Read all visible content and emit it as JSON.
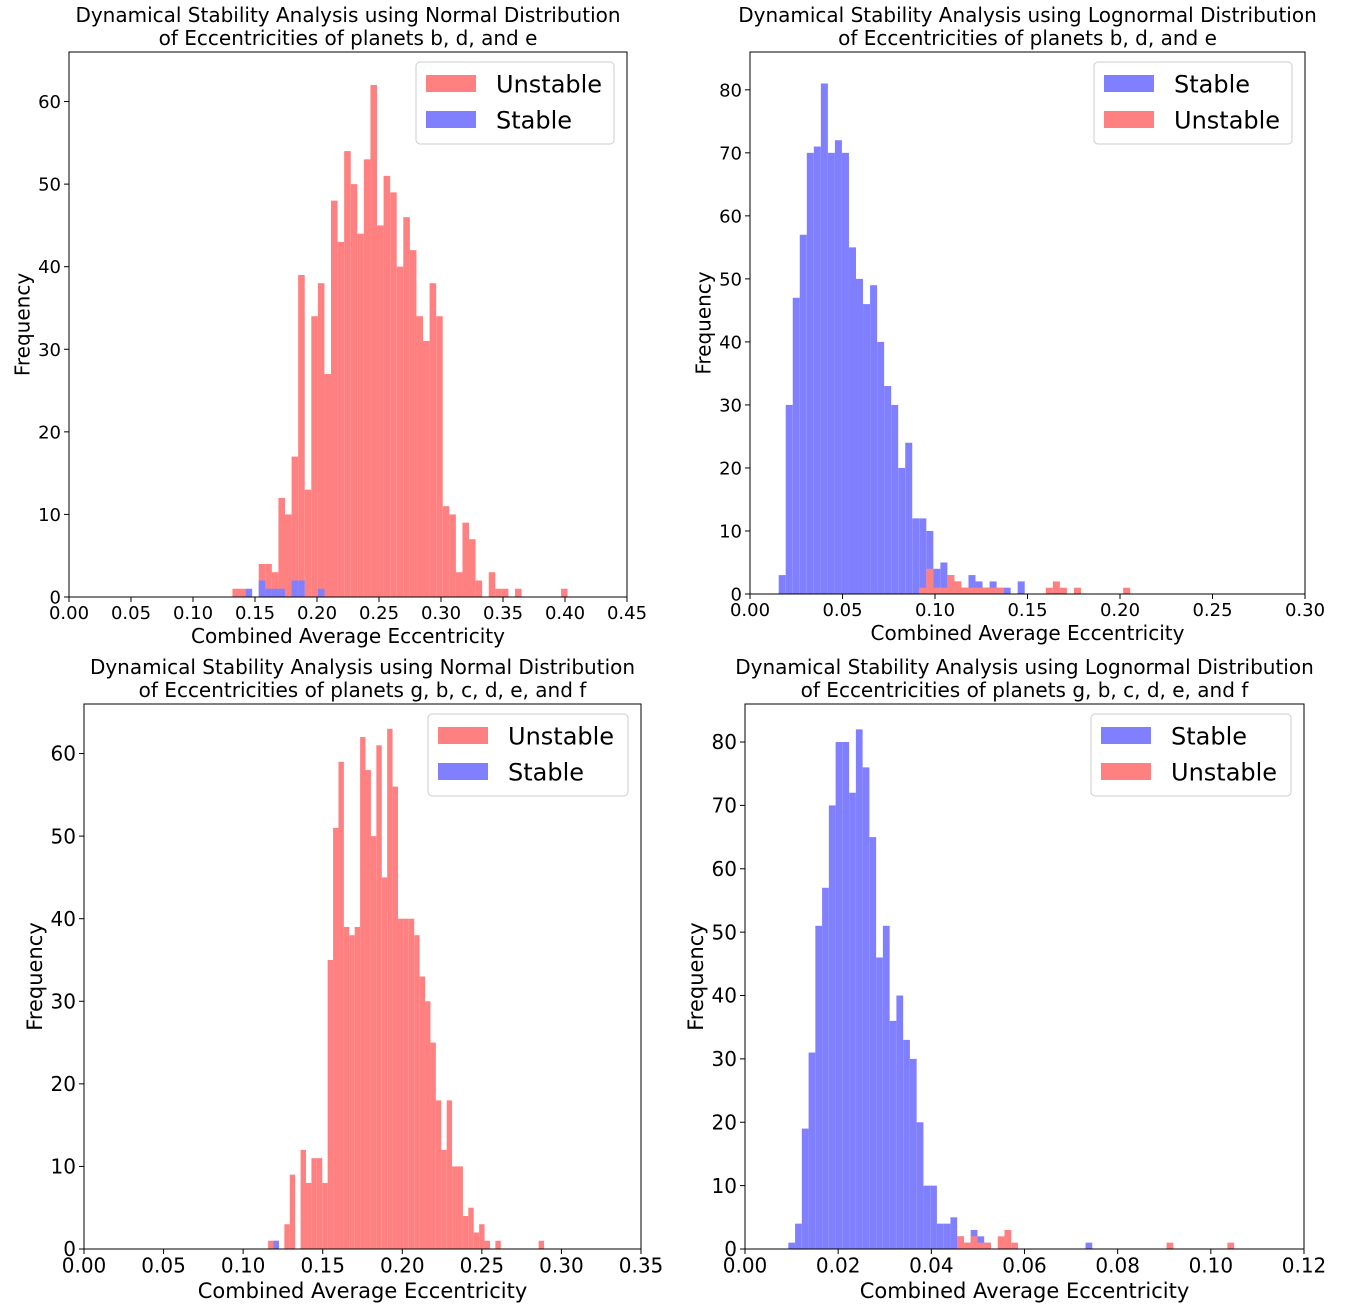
{
  "colors": {
    "stable": "#8080ff",
    "unstable": "#ff8080",
    "axis": "#000000"
  },
  "chart_data": [
    {
      "type": "bar",
      "title_lines": [
        "Dynamical Stability Analysis using Normal Distribution",
        "of Eccentricities of planets b, d, and e"
      ],
      "xlabel": "Combined Average Eccentricity",
      "ylabel": "Frequency",
      "xlim": [
        0,
        0.45
      ],
      "ylim": [
        0,
        66
      ],
      "xticks": [
        0,
        0.05,
        0.1,
        0.15,
        0.2,
        0.25,
        0.3,
        0.35,
        0.4,
        0.45
      ],
      "xtick_labels": [
        "0.00",
        "0.05",
        "0.10",
        "0.15",
        "0.20",
        "0.25",
        "0.30",
        "0.35",
        "0.40",
        "0.45"
      ],
      "yticks": [
        0,
        10,
        20,
        30,
        40,
        50,
        60
      ],
      "ytick_labels": [
        "0",
        "10",
        "20",
        "30",
        "40",
        "50",
        "60"
      ],
      "legend": {
        "position": "top-right",
        "entries": [
          {
            "label": "Unstable",
            "color_key": "unstable"
          },
          {
            "label": "Stable",
            "color_key": "stable"
          }
        ]
      },
      "series": [
        {
          "name": "Unstable",
          "color_key": "unstable",
          "bin_start": 0.1318,
          "bin_width": 0.0053,
          "values": [
            1,
            1,
            0,
            0,
            4,
            4,
            3,
            12,
            10,
            17,
            39,
            13,
            34,
            38,
            27,
            48,
            43,
            54,
            50,
            44,
            53,
            62,
            45,
            51,
            49,
            40,
            46,
            42,
            34,
            31,
            38,
            34,
            11,
            10,
            3,
            9,
            7,
            2,
            0,
            3,
            1,
            1,
            0,
            1,
            0,
            0,
            0,
            0,
            0,
            0,
            1
          ]
        },
        {
          "name": "Stable",
          "color_key": "stable",
          "bin_start": 0.1318,
          "bin_width": 0.0053,
          "values": [
            0,
            0,
            1,
            0,
            2,
            1,
            1,
            1,
            0,
            2,
            2,
            0,
            0,
            1,
            0,
            0,
            0,
            0,
            0,
            0,
            0,
            0,
            0,
            0,
            0,
            0,
            0,
            0,
            0,
            0,
            0,
            0,
            0,
            0,
            0,
            0,
            0,
            0,
            0,
            0,
            0,
            0,
            0,
            0,
            0,
            0,
            0,
            0,
            0,
            0,
            0
          ]
        }
      ]
    },
    {
      "type": "bar",
      "title_lines": [
        "Dynamical Stability Analysis using Lognormal Distribution",
        "of Eccentricities of planets b, d, and e"
      ],
      "xlabel": "Combined Average Eccentricity",
      "ylabel": "Frequency",
      "xlim": [
        0,
        0.3
      ],
      "ylim": [
        0,
        86
      ],
      "xticks": [
        0,
        0.05,
        0.1,
        0.15,
        0.2,
        0.25,
        0.3
      ],
      "xtick_labels": [
        "0.00",
        "0.05",
        "0.10",
        "0.15",
        "0.20",
        "0.25",
        "0.30"
      ],
      "yticks": [
        0,
        10,
        20,
        30,
        40,
        50,
        60,
        70,
        80
      ],
      "ytick_labels": [
        "0",
        "10",
        "20",
        "30",
        "40",
        "50",
        "60",
        "70",
        "80"
      ],
      "legend": {
        "position": "top-right",
        "entries": [
          {
            "label": "Stable",
            "color_key": "stable"
          },
          {
            "label": "Unstable",
            "color_key": "unstable"
          }
        ]
      },
      "series": [
        {
          "name": "Stable",
          "color_key": "stable",
          "bin_start": 0.0155,
          "bin_width": 0.0038,
          "values": [
            3,
            30,
            47,
            57,
            70,
            71,
            81,
            70,
            72,
            70,
            55,
            50,
            46,
            49,
            40,
            33,
            30,
            20,
            24,
            12,
            12,
            10,
            4,
            5,
            3,
            2,
            1,
            3,
            2,
            1,
            2,
            1,
            1,
            0,
            2,
            0,
            0,
            0,
            0,
            0,
            0,
            0,
            0,
            0,
            0,
            0,
            0,
            0,
            0,
            0
          ]
        },
        {
          "name": "Unstable",
          "color_key": "unstable",
          "bin_start": 0.0155,
          "bin_width": 0.0038,
          "values": [
            0,
            0,
            0,
            0,
            0,
            0,
            0,
            0,
            0,
            0,
            0,
            0,
            0,
            0,
            0,
            0,
            0,
            0,
            0,
            0,
            1,
            4,
            1,
            1,
            3,
            2,
            1,
            1,
            1,
            1,
            1,
            1,
            0,
            0,
            0,
            0,
            0,
            0,
            1,
            2,
            1,
            0,
            1,
            0,
            0,
            0,
            0,
            0,
            0,
            1
          ]
        }
      ]
    },
    {
      "type": "bar",
      "title_lines": [
        "Dynamical Stability Analysis using Normal Distribution",
        "of Eccentricities of planets g, b, c, d, e, and f"
      ],
      "xlabel": "Combined Average Eccentricity",
      "ylabel": "Frequency",
      "xlim": [
        0,
        0.35
      ],
      "ylim": [
        0,
        66
      ],
      "xticks": [
        0,
        0.05,
        0.1,
        0.15,
        0.2,
        0.25,
        0.3,
        0.35
      ],
      "xtick_labels": [
        "0.00",
        "0.05",
        "0.10",
        "0.15",
        "0.20",
        "0.25",
        "0.30",
        "0.35"
      ],
      "yticks": [
        0,
        10,
        20,
        30,
        40,
        50,
        60
      ],
      "ytick_labels": [
        "0",
        "10",
        "20",
        "30",
        "40",
        "50",
        "60"
      ],
      "legend": {
        "position": "top-right",
        "entries": [
          {
            "label": "Unstable",
            "color_key": "unstable"
          },
          {
            "label": "Stable",
            "color_key": "stable"
          }
        ]
      },
      "series": [
        {
          "name": "Unstable",
          "color_key": "unstable",
          "bin_start": 0.1157,
          "bin_width": 0.0034,
          "values": [
            1,
            1,
            0,
            3,
            9,
            0,
            12,
            8,
            11,
            11,
            8,
            35,
            51,
            59,
            39,
            38,
            39,
            62,
            58,
            50,
            61,
            45,
            63,
            56,
            40,
            40,
            40,
            38,
            33,
            30,
            25,
            18,
            12,
            18,
            10,
            10,
            4,
            5,
            2,
            3,
            1,
            0,
            1,
            0,
            0,
            0,
            0,
            0,
            0,
            0,
            1
          ]
        },
        {
          "name": "Stable",
          "color_key": "stable",
          "bin_start": 0.1157,
          "bin_width": 0.0034,
          "values": [
            0,
            1,
            0,
            0,
            0,
            0,
            0,
            0,
            0,
            0,
            0,
            0,
            0,
            0,
            0,
            0,
            0,
            0,
            0,
            0,
            0,
            0,
            0,
            0,
            0,
            0,
            0,
            0,
            0,
            0,
            0,
            0,
            0,
            0,
            0,
            0,
            0,
            0,
            0,
            0,
            0,
            0,
            0,
            0,
            0,
            0,
            0,
            0,
            0,
            0,
            0
          ]
        }
      ]
    },
    {
      "type": "bar",
      "title_lines": [
        "Dynamical Stability Analysis using Lognormal Distribution",
        "of Eccentricities of planets g, b, c, d, e, and f"
      ],
      "xlabel": "Combined Average Eccentricity",
      "ylabel": "Frequency",
      "xlim": [
        0,
        0.12
      ],
      "ylim": [
        0,
        86
      ],
      "xticks": [
        0,
        0.02,
        0.04,
        0.06,
        0.08,
        0.1,
        0.12
      ],
      "xtick_labels": [
        "0.00",
        "0.02",
        "0.04",
        "0.06",
        "0.08",
        "0.10",
        "0.12"
      ],
      "yticks": [
        0,
        10,
        20,
        30,
        40,
        50,
        60,
        70,
        80
      ],
      "ytick_labels": [
        "0",
        "10",
        "20",
        "30",
        "40",
        "50",
        "60",
        "70",
        "80"
      ],
      "legend": {
        "position": "top-right",
        "entries": [
          {
            "label": "Stable",
            "color_key": "stable"
          },
          {
            "label": "Unstable",
            "color_key": "unstable"
          }
        ]
      },
      "series": [
        {
          "name": "Stable",
          "color_key": "stable",
          "bin_start": 0.0093,
          "bin_width": 0.00145,
          "values": [
            1,
            4,
            19,
            31,
            51,
            57,
            70,
            80,
            80,
            72,
            82,
            76,
            65,
            46,
            51,
            36,
            40,
            33,
            30,
            20,
            10,
            10,
            4,
            4,
            5,
            2,
            1,
            3,
            2,
            1,
            0,
            0,
            0,
            0,
            0,
            0,
            0,
            0,
            0,
            0,
            0,
            0,
            0,
            0,
            1,
            0,
            0,
            0,
            0,
            0,
            0,
            0,
            0,
            0,
            0,
            0,
            0,
            0,
            0,
            0,
            0,
            0,
            0,
            0,
            0,
            0
          ]
        },
        {
          "name": "Unstable",
          "color_key": "unstable",
          "bin_start": 0.0093,
          "bin_width": 0.00145,
          "values": [
            0,
            0,
            0,
            0,
            0,
            0,
            0,
            0,
            0,
            0,
            0,
            0,
            0,
            0,
            0,
            0,
            0,
            0,
            0,
            0,
            0,
            0,
            0,
            0,
            0,
            2,
            1,
            2,
            1,
            1,
            0,
            2,
            3,
            1,
            0,
            0,
            0,
            0,
            0,
            0,
            0,
            0,
            0,
            0,
            0,
            0,
            0,
            0,
            0,
            0,
            0,
            0,
            0,
            0,
            0,
            0,
            1,
            0,
            0,
            0,
            0,
            0,
            0,
            0,
            0,
            1
          ]
        }
      ]
    }
  ]
}
